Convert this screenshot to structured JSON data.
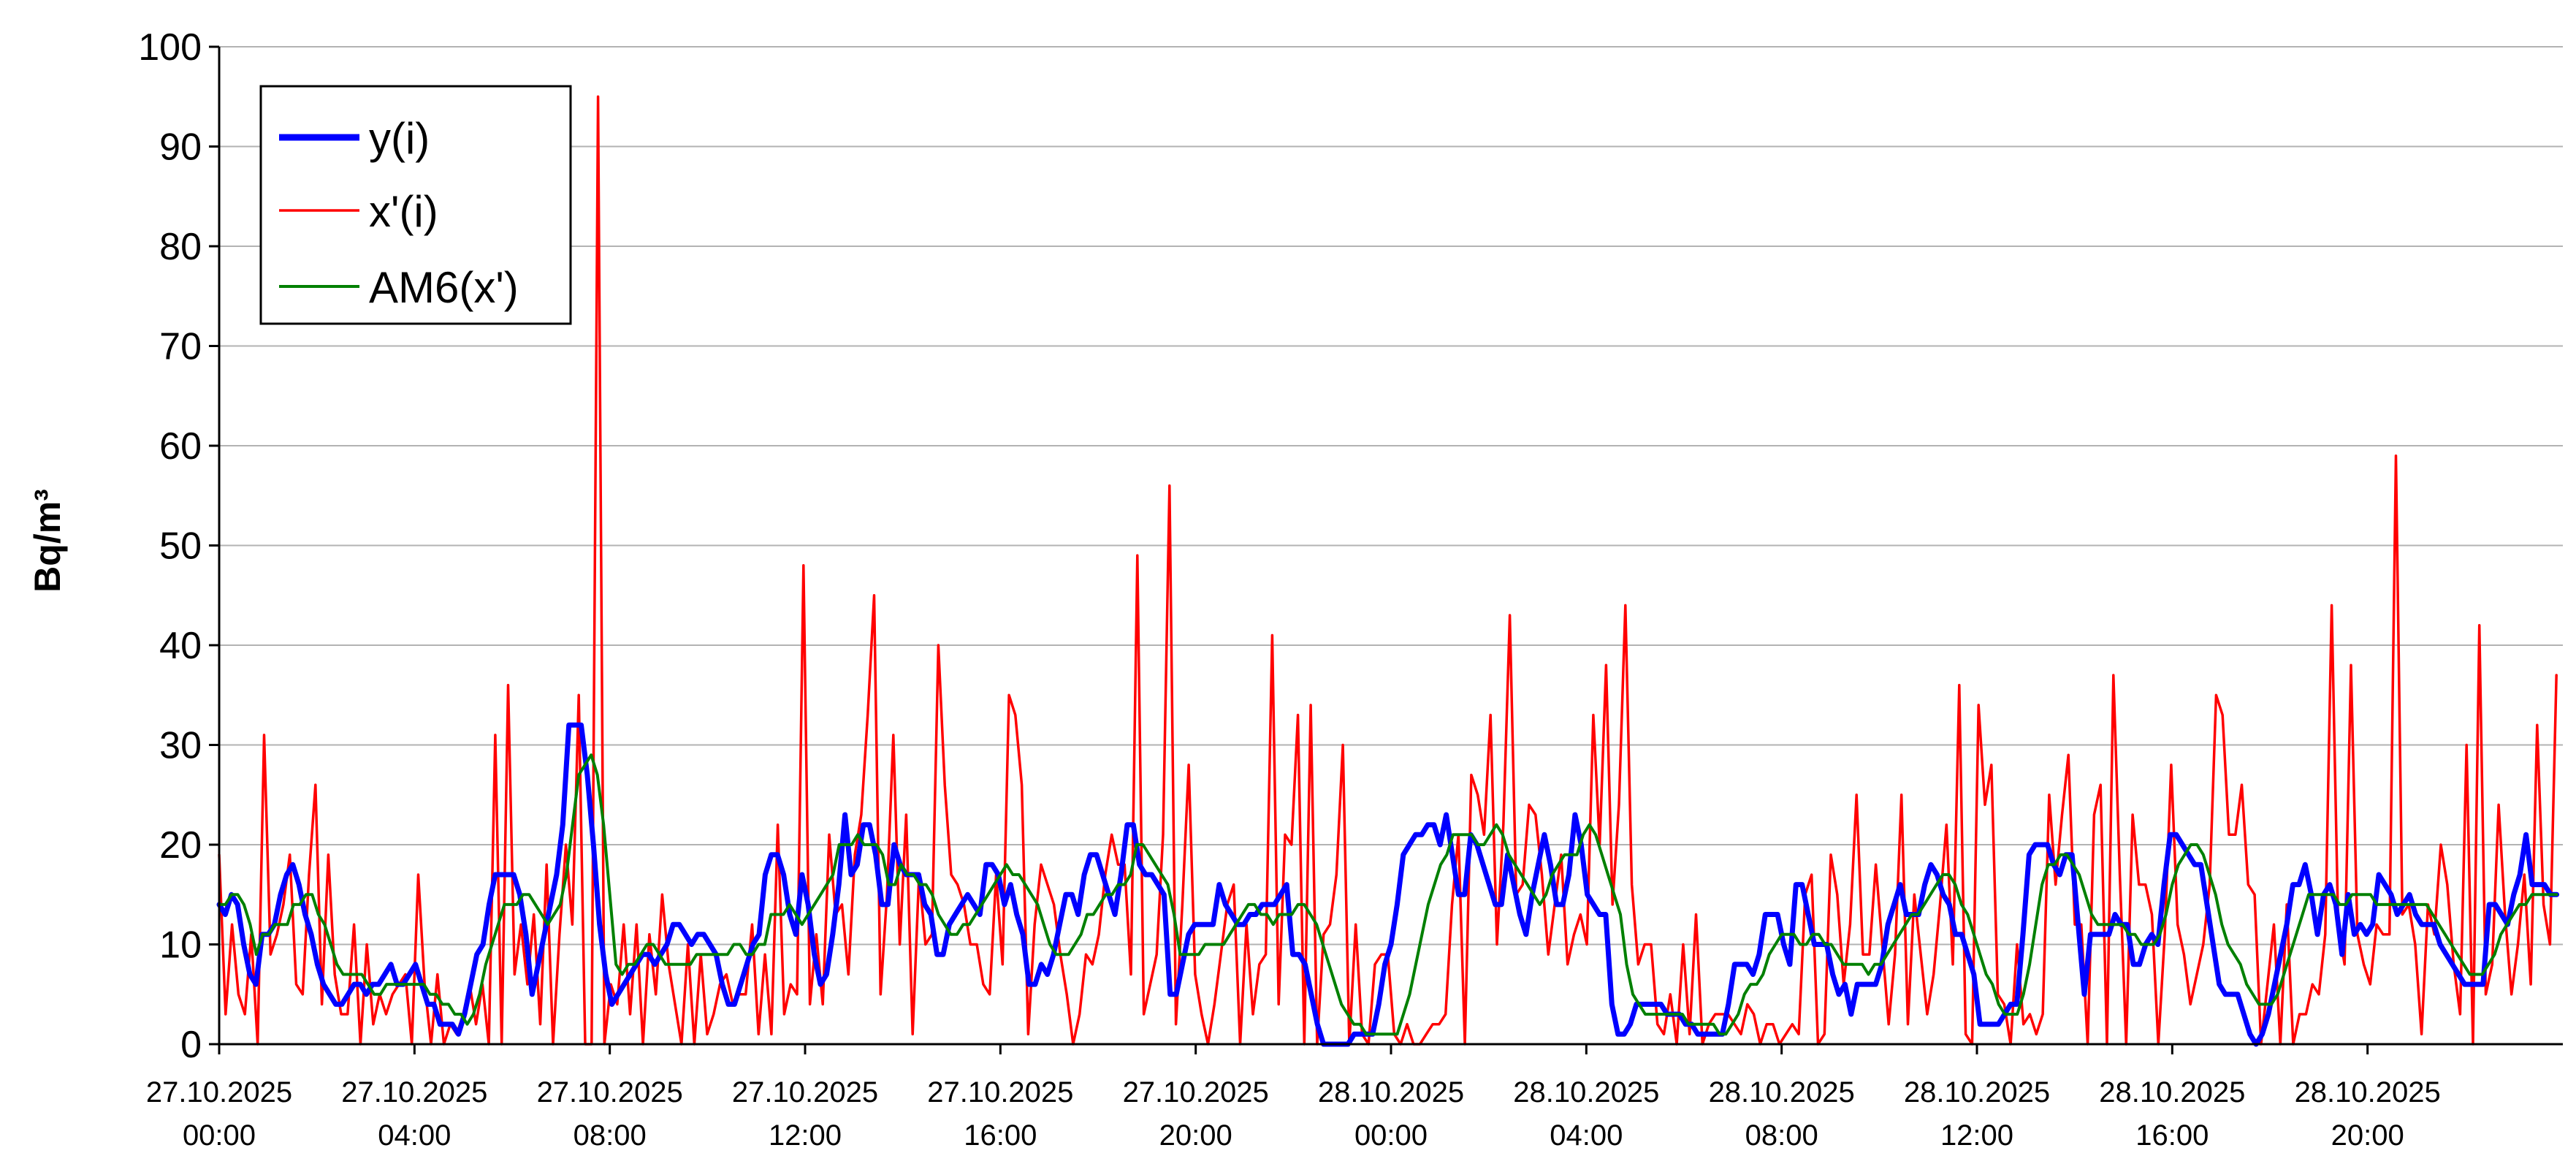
{
  "chart_data": {
    "type": "line",
    "title": "",
    "xlabel": "",
    "ylabel": "Bq/m³",
    "ylim": [
      0,
      100
    ],
    "y_ticks": [
      0,
      10,
      20,
      30,
      40,
      50,
      60,
      70,
      80,
      90,
      100
    ],
    "grid": "horizontal",
    "legend_position": "top-left",
    "x_range": [
      "27.10.2025 00:00",
      "28.10.2025 23:50"
    ],
    "x_interval_minutes": 10,
    "x_tick_labels": [
      {
        "date": "27.10.2025",
        "time": "00:00"
      },
      {
        "date": "27.10.2025",
        "time": "04:00"
      },
      {
        "date": "27.10.2025",
        "time": "08:00"
      },
      {
        "date": "27.10.2025",
        "time": "12:00"
      },
      {
        "date": "27.10.2025",
        "time": "16:00"
      },
      {
        "date": "27.10.2025",
        "time": "20:00"
      },
      {
        "date": "28.10.2025",
        "time": "00:00"
      },
      {
        "date": "28.10.2025",
        "time": "04:00"
      },
      {
        "date": "28.10.2025",
        "time": "08:00"
      },
      {
        "date": "28.10.2025",
        "time": "12:00"
      },
      {
        "date": "28.10.2025",
        "time": "16:00"
      },
      {
        "date": "28.10.2025",
        "time": "20:00"
      }
    ],
    "series": [
      {
        "name": "y(i)",
        "color": "#0000ff",
        "values": [
          14,
          13,
          15,
          14,
          10,
          7,
          6,
          11,
          11,
          12,
          15,
          17,
          18,
          16,
          13,
          11,
          8,
          6,
          5,
          4,
          4,
          5,
          6,
          6,
          5,
          6,
          6,
          7,
          8,
          6,
          6,
          7,
          8,
          6,
          4,
          4,
          2,
          2,
          2,
          1,
          3,
          6,
          9,
          10,
          14,
          17,
          17,
          17,
          17,
          15,
          11,
          5,
          8,
          11,
          14,
          17,
          22,
          32,
          32,
          32,
          27,
          20,
          12,
          7,
          4,
          5,
          6,
          7,
          8,
          9,
          9,
          8,
          9,
          10,
          12,
          12,
          11,
          10,
          11,
          11,
          10,
          9,
          6,
          4,
          4,
          6,
          8,
          10,
          11,
          17,
          19,
          19,
          17,
          13,
          11,
          17,
          14,
          9,
          6,
          7,
          11,
          16,
          23,
          17,
          18,
          22,
          22,
          19,
          14,
          14,
          20,
          18,
          17,
          17,
          17,
          14,
          13,
          9,
          9,
          12,
          13,
          14,
          15,
          14,
          13,
          18,
          18,
          17,
          14,
          16,
          13,
          11,
          6,
          6,
          8,
          7,
          9,
          12,
          15,
          15,
          13,
          17,
          19,
          19,
          17,
          15,
          13,
          17,
          22,
          22,
          18,
          17,
          17,
          16,
          15,
          5,
          5,
          8,
          11,
          12,
          12,
          12,
          12,
          16,
          14,
          13,
          12,
          12,
          13,
          13,
          14,
          14,
          14,
          15,
          16,
          9,
          9,
          8,
          5,
          2,
          0,
          0,
          0,
          0,
          0,
          1,
          1,
          1,
          1,
          4,
          8,
          10,
          14,
          19,
          20,
          21,
          21,
          22,
          22,
          20,
          23,
          19,
          15,
          15,
          21,
          20,
          18,
          16,
          14,
          14,
          19,
          16,
          13,
          11,
          15,
          18,
          21,
          18,
          14,
          14,
          17,
          23,
          20,
          15,
          14,
          13,
          13,
          4,
          1,
          1,
          2,
          4,
          4,
          4,
          4,
          4,
          3,
          3,
          3,
          2,
          2,
          1,
          1,
          1,
          1,
          1,
          4,
          8,
          8,
          8,
          7,
          9,
          13,
          13,
          13,
          10,
          8,
          16,
          16,
          13,
          10,
          10,
          10,
          7,
          5,
          6,
          3,
          6,
          6,
          6,
          6,
          8,
          12,
          14,
          16,
          13,
          13,
          13,
          16,
          18,
          17,
          15,
          14,
          11,
          11,
          9,
          7,
          2,
          2,
          2,
          2,
          3,
          4,
          4,
          11,
          19,
          20,
          20,
          20,
          18,
          17,
          19,
          19,
          12,
          5,
          11,
          11,
          11,
          11,
          13,
          12,
          12,
          8,
          8,
          10,
          11,
          10,
          16,
          21,
          21,
          20,
          19,
          18,
          18,
          14,
          10,
          6,
          5,
          5,
          5,
          3,
          1,
          0,
          1,
          3,
          6,
          9,
          12,
          16,
          16,
          18,
          15,
          11,
          15,
          16,
          14,
          9,
          15,
          11,
          12,
          11,
          12,
          17,
          16,
          15,
          13,
          14,
          15,
          13,
          12,
          12,
          12,
          10,
          9,
          8,
          7,
          6,
          6,
          6,
          6,
          14,
          14,
          13,
          12,
          15,
          17,
          21,
          16,
          16,
          16,
          15,
          15
        ]
      },
      {
        "name": "x'(i)",
        "color": "#ff0000",
        "values": [
          19,
          3,
          12,
          5,
          3,
          11,
          0,
          31,
          9,
          11,
          14,
          19,
          6,
          5,
          17,
          26,
          4,
          19,
          7,
          3,
          3,
          12,
          0,
          10,
          2,
          5,
          3,
          5,
          6,
          7,
          0,
          17,
          6,
          0,
          7,
          0,
          2,
          1,
          3,
          6,
          2,
          6,
          0,
          31,
          0,
          36,
          7,
          12,
          6,
          13,
          2,
          18,
          0,
          11,
          20,
          12,
          35,
          0,
          0,
          95,
          0,
          6,
          4,
          12,
          3,
          12,
          0,
          11,
          5,
          15,
          8,
          4,
          0,
          10,
          0,
          9,
          1,
          3,
          6,
          7,
          4,
          5,
          5,
          12,
          1,
          9,
          1,
          22,
          3,
          6,
          5,
          48,
          4,
          11,
          4,
          21,
          13,
          14,
          7,
          19,
          23,
          33,
          45,
          5,
          15,
          31,
          10,
          23,
          1,
          17,
          10,
          11,
          40,
          26,
          17,
          16,
          14,
          10,
          10,
          6,
          5,
          17,
          8,
          35,
          33,
          26,
          1,
          12,
          18,
          16,
          14,
          9,
          5,
          0,
          3,
          9,
          8,
          11,
          17,
          21,
          18,
          18,
          7,
          49,
          3,
          6,
          9,
          21,
          56,
          2,
          14,
          28,
          7,
          3,
          0,
          4,
          9,
          14,
          16,
          0,
          12,
          3,
          8,
          9,
          41,
          4,
          21,
          20,
          33,
          0,
          34,
          0,
          11,
          12,
          17,
          30,
          0,
          12,
          1,
          0,
          8,
          9,
          9,
          1,
          0,
          2,
          0,
          0,
          1,
          2,
          2,
          3,
          14,
          21,
          0,
          27,
          25,
          21,
          33,
          10,
          22,
          43,
          15,
          16,
          24,
          23,
          17,
          9,
          14,
          19,
          8,
          11,
          13,
          10,
          33,
          20,
          38,
          14,
          24,
          44,
          16,
          8,
          10,
          10,
          2,
          1,
          5,
          0,
          10,
          1,
          13,
          0,
          2,
          3,
          3,
          3,
          2,
          1,
          4,
          3,
          0,
          2,
          2,
          0,
          1,
          2,
          1,
          15,
          17,
          0,
          1,
          19,
          15,
          6,
          12,
          25,
          9,
          9,
          18,
          10,
          2,
          9,
          25,
          2,
          15,
          9,
          3,
          7,
          14,
          22,
          8,
          36,
          1,
          0,
          34,
          24,
          28,
          5,
          4,
          0,
          10,
          2,
          3,
          1,
          3,
          25,
          16,
          23,
          29,
          12,
          12,
          0,
          23,
          26,
          0,
          37,
          17,
          0,
          23,
          16,
          16,
          13,
          0,
          11,
          28,
          12,
          9,
          4,
          7,
          10,
          16,
          35,
          33,
          21,
          21,
          26,
          16,
          15,
          0,
          6,
          12,
          0,
          14,
          0,
          3,
          3,
          6,
          5,
          11,
          44,
          12,
          8,
          38,
          11,
          8,
          6,
          12,
          11,
          11,
          59,
          13,
          14,
          10,
          1,
          14,
          11,
          20,
          16,
          8,
          3,
          30,
          0,
          42,
          5,
          8,
          24,
          13,
          5,
          10,
          17,
          6,
          32,
          14,
          10,
          37
        ]
      },
      {
        "name": "AM6(x')",
        "color": "#008000",
        "values": [
          14,
          14,
          15,
          15,
          14,
          12,
          9,
          11,
          11,
          12,
          12,
          12,
          14,
          14,
          15,
          15,
          13,
          12,
          10,
          8,
          7,
          7,
          7,
          7,
          6,
          5,
          5,
          6,
          6,
          6,
          6,
          6,
          6,
          6,
          5,
          5,
          4,
          4,
          3,
          3,
          2,
          3,
          5,
          8,
          10,
          12,
          14,
          14,
          14,
          15,
          15,
          14,
          13,
          12,
          13,
          14,
          17,
          22,
          27,
          28,
          29,
          27,
          22,
          15,
          8,
          7,
          8,
          8,
          9,
          10,
          10,
          9,
          8,
          8,
          8,
          8,
          8,
          9,
          9,
          9,
          9,
          9,
          9,
          10,
          10,
          9,
          9,
          10,
          10,
          13,
          13,
          13,
          14,
          13,
          12,
          13,
          14,
          15,
          16,
          17,
          20,
          20,
          20,
          21,
          20,
          20,
          20,
          19,
          16,
          16,
          18,
          17,
          17,
          16,
          16,
          15,
          13,
          12,
          11,
          11,
          12,
          12,
          13,
          14,
          15,
          16,
          17,
          18,
          17,
          17,
          16,
          15,
          14,
          12,
          10,
          9,
          9,
          9,
          10,
          11,
          13,
          13,
          14,
          15,
          15,
          16,
          16,
          17,
          20,
          20,
          19,
          18,
          17,
          16,
          13,
          9,
          9,
          9,
          9,
          10,
          10,
          10,
          10,
          11,
          12,
          13,
          14,
          14,
          13,
          13,
          12,
          13,
          13,
          13,
          14,
          14,
          13,
          12,
          10,
          8,
          6,
          4,
          3,
          2,
          2,
          1,
          1,
          1,
          1,
          1,
          1,
          3,
          5,
          8,
          11,
          14,
          16,
          18,
          19,
          21,
          21,
          21,
          21,
          20,
          20,
          21,
          22,
          21,
          19,
          18,
          17,
          16,
          15,
          14,
          15,
          17,
          18,
          19,
          19,
          19,
          21,
          22,
          21,
          19,
          17,
          15,
          13,
          8,
          5,
          4,
          3,
          3,
          3,
          3,
          3,
          3,
          3,
          2,
          2,
          2,
          2,
          2,
          1,
          1,
          2,
          3,
          5,
          6,
          6,
          7,
          9,
          10,
          11,
          11,
          11,
          10,
          10,
          11,
          11,
          10,
          10,
          9,
          8,
          8,
          8,
          8,
          7,
          8,
          8,
          9,
          10,
          11,
          12,
          13,
          13,
          14,
          15,
          16,
          17,
          17,
          16,
          14,
          13,
          11,
          9,
          7,
          6,
          4,
          3,
          3,
          3,
          5,
          8,
          12,
          16,
          18,
          18,
          19,
          19,
          18,
          17,
          15,
          13,
          12,
          12,
          12,
          12,
          12,
          11,
          11,
          10,
          10,
          10,
          11,
          13,
          16,
          18,
          19,
          20,
          20,
          19,
          17,
          15,
          12,
          10,
          9,
          8,
          6,
          5,
          4,
          4,
          4,
          5,
          7,
          9,
          11,
          13,
          15,
          15,
          15,
          15,
          15,
          14,
          14,
          15,
          15,
          15,
          15,
          14,
          14,
          14,
          14,
          14,
          14,
          14,
          14,
          14,
          13,
          12,
          11,
          10,
          9,
          8,
          7,
          7,
          7,
          8,
          9,
          11,
          12,
          13,
          14,
          14,
          15,
          15,
          15,
          15,
          15
        ]
      }
    ]
  }
}
